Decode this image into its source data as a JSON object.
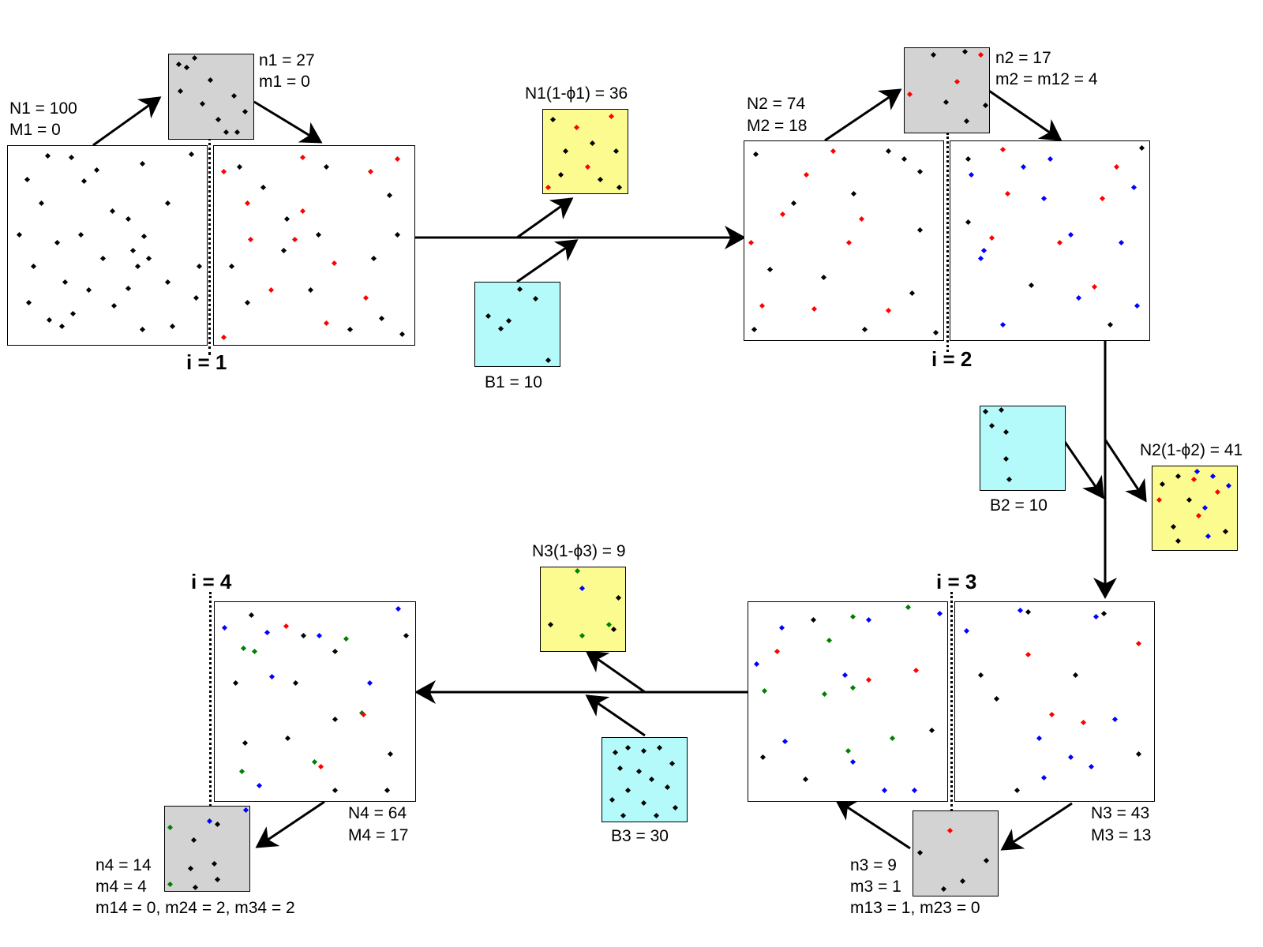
{
  "colors": {
    "gray": "#d3d3d3",
    "yellow": "#fbfb8f",
    "cyan": "#b4fafa",
    "black": "#000000",
    "red": "#ff0000",
    "blue": "#0000ff",
    "green": "#008000"
  },
  "stage1": {
    "occasion": "i = 1",
    "N": "N1 = 100",
    "M": "M1 = 0",
    "n": "n1 = 27",
    "m": "m1 = 0",
    "loss": "N1(1-ϕ1) = 36",
    "births": "B1 = 10"
  },
  "stage2": {
    "occasion": "i = 2",
    "N": "N2 = 74",
    "M": "M2 = 18",
    "n": "n2 = 17",
    "m": "m2 = m12 = 4",
    "loss": "N2(1-ϕ2) = 41",
    "births": "B2 = 10"
  },
  "stage3": {
    "occasion": "i = 3",
    "N": "N3 = 43",
    "M": "M3 = 13",
    "n": "n3 = 9",
    "m": "m3 = 1",
    "mdetail": "m13 = 1, m23 = 0",
    "loss": "N3(1-ϕ3) = 9",
    "births": "B3 = 30"
  },
  "stage4": {
    "occasion": "i = 4",
    "N": "N4 = 64",
    "M": "M4 = 17",
    "n": "n4 = 14",
    "m": "m4 = 4",
    "mdetail": "m14 = 0, m24 = 2, m34 = 2"
  }
}
